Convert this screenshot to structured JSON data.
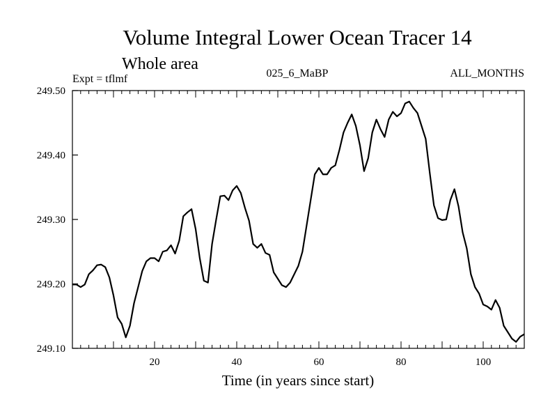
{
  "chart_data": {
    "type": "line",
    "title": "Volume Integral Lower Ocean Tracer 14",
    "subtitle": "Whole area",
    "expt_label": "Expt = tflmf",
    "center_label": "025_6_MaBP",
    "right_label": "ALL_MONTHS",
    "xlabel": "Time (in years since start)",
    "ylabel": "",
    "xlim": [
      0,
      110
    ],
    "ylim": [
      249.1,
      249.5
    ],
    "x_ticks": [
      20,
      40,
      60,
      80,
      100
    ],
    "y_ticks": [
      249.1,
      249.2,
      249.3,
      249.4,
      249.5
    ],
    "y_tick_labels": [
      "249.10",
      "249.20",
      "249.30",
      "249.40",
      "249.50"
    ],
    "grid": false,
    "series": [
      {
        "name": "Volume Integral",
        "x": [
          0,
          1,
          2,
          3,
          4,
          5,
          6,
          7,
          8,
          9,
          10,
          11,
          12,
          13,
          14,
          15,
          16,
          17,
          18,
          19,
          20,
          21,
          22,
          23,
          24,
          25,
          26,
          27,
          28,
          29,
          30,
          31,
          32,
          33,
          34,
          35,
          36,
          37,
          38,
          39,
          40,
          41,
          42,
          43,
          44,
          45,
          46,
          47,
          48,
          49,
          50,
          51,
          52,
          53,
          54,
          55,
          56,
          57,
          58,
          59,
          60,
          61,
          62,
          63,
          64,
          65,
          66,
          67,
          68,
          69,
          70,
          71,
          72,
          73,
          74,
          75,
          76,
          77,
          78,
          79,
          80,
          81,
          82,
          83,
          84,
          85,
          86,
          87,
          88,
          89,
          90,
          91,
          92,
          93,
          94,
          95,
          96,
          97,
          98,
          99,
          100,
          101,
          102,
          103,
          104,
          105,
          106,
          107,
          108,
          109,
          110
        ],
        "values": [
          249.199,
          249.199,
          249.195,
          249.199,
          249.215,
          249.221,
          249.229,
          249.23,
          249.226,
          249.21,
          249.182,
          249.148,
          249.138,
          249.117,
          249.135,
          249.17,
          249.195,
          249.22,
          249.235,
          249.24,
          249.24,
          249.235,
          249.25,
          249.252,
          249.26,
          249.247,
          249.267,
          249.305,
          249.311,
          249.316,
          249.285,
          249.24,
          249.205,
          249.202,
          249.262,
          249.3,
          249.336,
          249.337,
          249.33,
          249.345,
          249.352,
          249.341,
          249.318,
          249.298,
          249.262,
          249.256,
          249.262,
          249.248,
          249.245,
          249.218,
          249.208,
          249.198,
          249.195,
          249.202,
          249.215,
          249.228,
          249.25,
          249.29,
          249.33,
          249.37,
          249.38,
          249.37,
          249.37,
          249.38,
          249.384,
          249.408,
          249.435,
          249.45,
          249.463,
          249.445,
          249.415,
          249.375,
          249.395,
          249.435,
          249.455,
          249.44,
          249.428,
          249.455,
          249.467,
          249.46,
          249.465,
          249.48,
          249.483,
          249.473,
          249.465,
          249.445,
          249.425,
          249.372,
          249.322,
          249.302,
          249.299,
          249.3,
          249.33,
          249.347,
          249.32,
          249.28,
          249.255,
          249.215,
          249.195,
          249.185,
          249.168,
          249.165,
          249.16,
          249.175,
          249.163,
          249.135,
          249.125,
          249.115,
          249.11,
          249.118,
          249.122
        ]
      }
    ]
  }
}
